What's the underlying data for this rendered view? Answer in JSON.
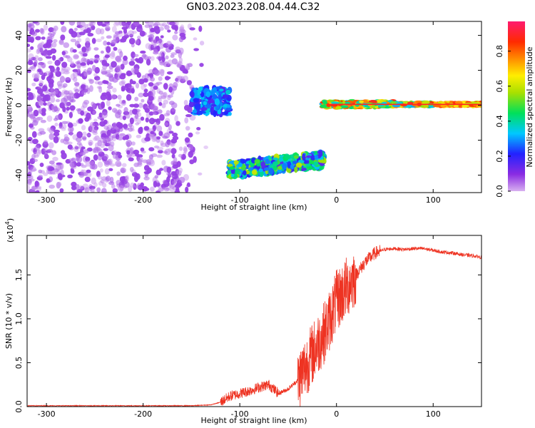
{
  "figure_title": "GN03.2023.208.04.44.C32",
  "chart_data": [
    {
      "type": "heatmap",
      "title": "GN03.2023.208.04.44.C32",
      "xlabel": "Height of straight line (km)",
      "ylabel": "Frequency (Hz)",
      "xlim": [
        -320,
        150
      ],
      "ylim": [
        -50,
        48
      ],
      "xticks": [
        -300,
        -200,
        -100,
        0,
        100
      ],
      "xtick_labels": [
        "-300",
        "-200",
        "-100",
        "0",
        "100"
      ],
      "yticks": [
        -40,
        -20,
        0,
        20,
        40
      ],
      "ytick_labels": [
        "-40",
        "-20",
        "0",
        "20",
        "40"
      ],
      "colorbar": {
        "label": "Normalized spectral amplitude",
        "range": [
          0,
          0.97
        ],
        "ticks": [
          0.0,
          0.2,
          0.4,
          0.6,
          0.8
        ],
        "tick_labels": [
          "0.0",
          "0.2",
          "0.4",
          "0.6",
          "0.8"
        ],
        "colormap": [
          "#d8b0f0",
          "#8a2be2",
          "#2222ff",
          "#00c8ff",
          "#00e05a",
          "#a8e000",
          "#ffee00",
          "#ff8c00",
          "#ff2a00",
          "#ff1a70"
        ]
      },
      "regions": [
        {
          "name": "noise",
          "x": [
            -320,
            -135
          ],
          "y": [
            -50,
            48
          ],
          "amplitude": [
            0.02,
            0.12
          ]
        },
        {
          "name": "burst",
          "x": [
            -150,
            -110
          ],
          "y": [
            -5,
            10
          ],
          "amplitude": [
            0.15,
            0.35
          ]
        },
        {
          "name": "descent",
          "x": [
            -112,
            -12
          ],
          "y": [
            -40,
            -28
          ],
          "amplitude": [
            0.15,
            0.45
          ]
        },
        {
          "name": "flight",
          "x": [
            -15,
            150
          ],
          "y": [
            -2,
            3
          ],
          "amplitude": [
            0.3,
            0.9
          ]
        }
      ],
      "grid": false
    },
    {
      "type": "line",
      "xlabel": "Height of straight line (km)",
      "ylabel": "SNR (10 * v/v)",
      "multiplier_label": "(x10",
      "multiplier_exponent": "4",
      "multiplier_close": ")",
      "xlim": [
        -320,
        150
      ],
      "ylim": [
        0,
        1.95
      ],
      "xticks": [
        -300,
        -200,
        -100,
        0,
        100
      ],
      "xtick_labels": [
        "-300",
        "-200",
        "-100",
        "0",
        "100"
      ],
      "yticks": [
        0.0,
        0.5,
        1.0,
        1.5
      ],
      "ytick_labels": [
        "0.0",
        "0.5",
        "1.0",
        "1.5"
      ],
      "line_color": "#ee3322",
      "series": [
        {
          "x": [
            -320,
            -250,
            -200,
            -150,
            -130,
            -120,
            -110,
            -100,
            -90,
            -80,
            -70,
            -60,
            -50,
            -40,
            -30,
            -20,
            -10,
            0,
            10,
            20,
            30,
            40,
            50,
            60,
            70,
            80,
            90,
            100,
            110,
            120,
            130,
            140,
            150
          ],
          "values": [
            0.01,
            0.01,
            0.01,
            0.01,
            0.02,
            0.05,
            0.12,
            0.15,
            0.18,
            0.22,
            0.25,
            0.15,
            0.2,
            0.3,
            0.5,
            0.7,
            0.9,
            1.2,
            1.35,
            1.5,
            1.65,
            1.75,
            1.79,
            1.8,
            1.79,
            1.8,
            1.8,
            1.78,
            1.76,
            1.75,
            1.73,
            1.72,
            1.7
          ]
        }
      ],
      "grid": false
    }
  ]
}
